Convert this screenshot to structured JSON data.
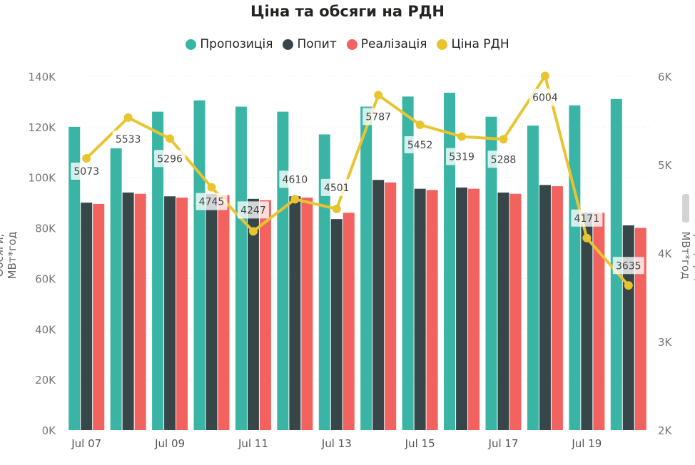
{
  "chart_data": {
    "type": "bar",
    "title": "Ціна та обсяги на РДН",
    "categories": [
      "Jul 07",
      "Jul 08",
      "Jul 09",
      "Jul 10",
      "Jul 11",
      "Jul 12",
      "Jul 13",
      "Jul 14",
      "Jul 15",
      "Jul 16",
      "Jul 17",
      "Jul 18",
      "Jul 19",
      "Jul 20"
    ],
    "x_tick_labels": [
      "Jul 07",
      "Jul 09",
      "Jul 11",
      "Jul 13",
      "Jul 15",
      "Jul 17",
      "Jul 19"
    ],
    "series": [
      {
        "name": "Пропозиція",
        "axis": "left",
        "color": "#3AB5A5",
        "values": [
          120000,
          111500,
          126000,
          130500,
          128000,
          126000,
          117000,
          128000,
          132000,
          133500,
          124000,
          120500,
          128500,
          131000
        ]
      },
      {
        "name": "Попит",
        "axis": "left",
        "color": "#374649",
        "values": [
          90000,
          94000,
          92500,
          93500,
          91500,
          92500,
          83500,
          99000,
          95500,
          96000,
          94000,
          97000,
          86000,
          81000
        ]
      },
      {
        "name": "Реалізація",
        "axis": "left",
        "color": "#F2635F",
        "values": [
          89500,
          93500,
          92000,
          93000,
          91000,
          92000,
          86000,
          98000,
          95000,
          95500,
          93500,
          96500,
          86000,
          80000
        ]
      },
      {
        "name": "Ціна РДН",
        "axis": "right",
        "type": "line",
        "color": "#E8C530",
        "values": [
          5073,
          5533,
          5296,
          4745,
          4247,
          4610,
          4501,
          5787,
          5452,
          5319,
          5288,
          6004,
          4171,
          3635
        ]
      }
    ],
    "ylabel": "Обсяги, МВт*год",
    "y2label": "Ціна, грн/МВт*год",
    "ylim": [
      0,
      140000
    ],
    "y2lim": [
      2000,
      6000
    ],
    "y_ticks": [
      "0K",
      "20K",
      "40K",
      "60K",
      "80K",
      "100K",
      "120K",
      "140K"
    ],
    "y2_ticks": [
      "2K",
      "3K",
      "4K",
      "5K",
      "6K"
    ],
    "grid": true,
    "legend_position": "top-center"
  }
}
